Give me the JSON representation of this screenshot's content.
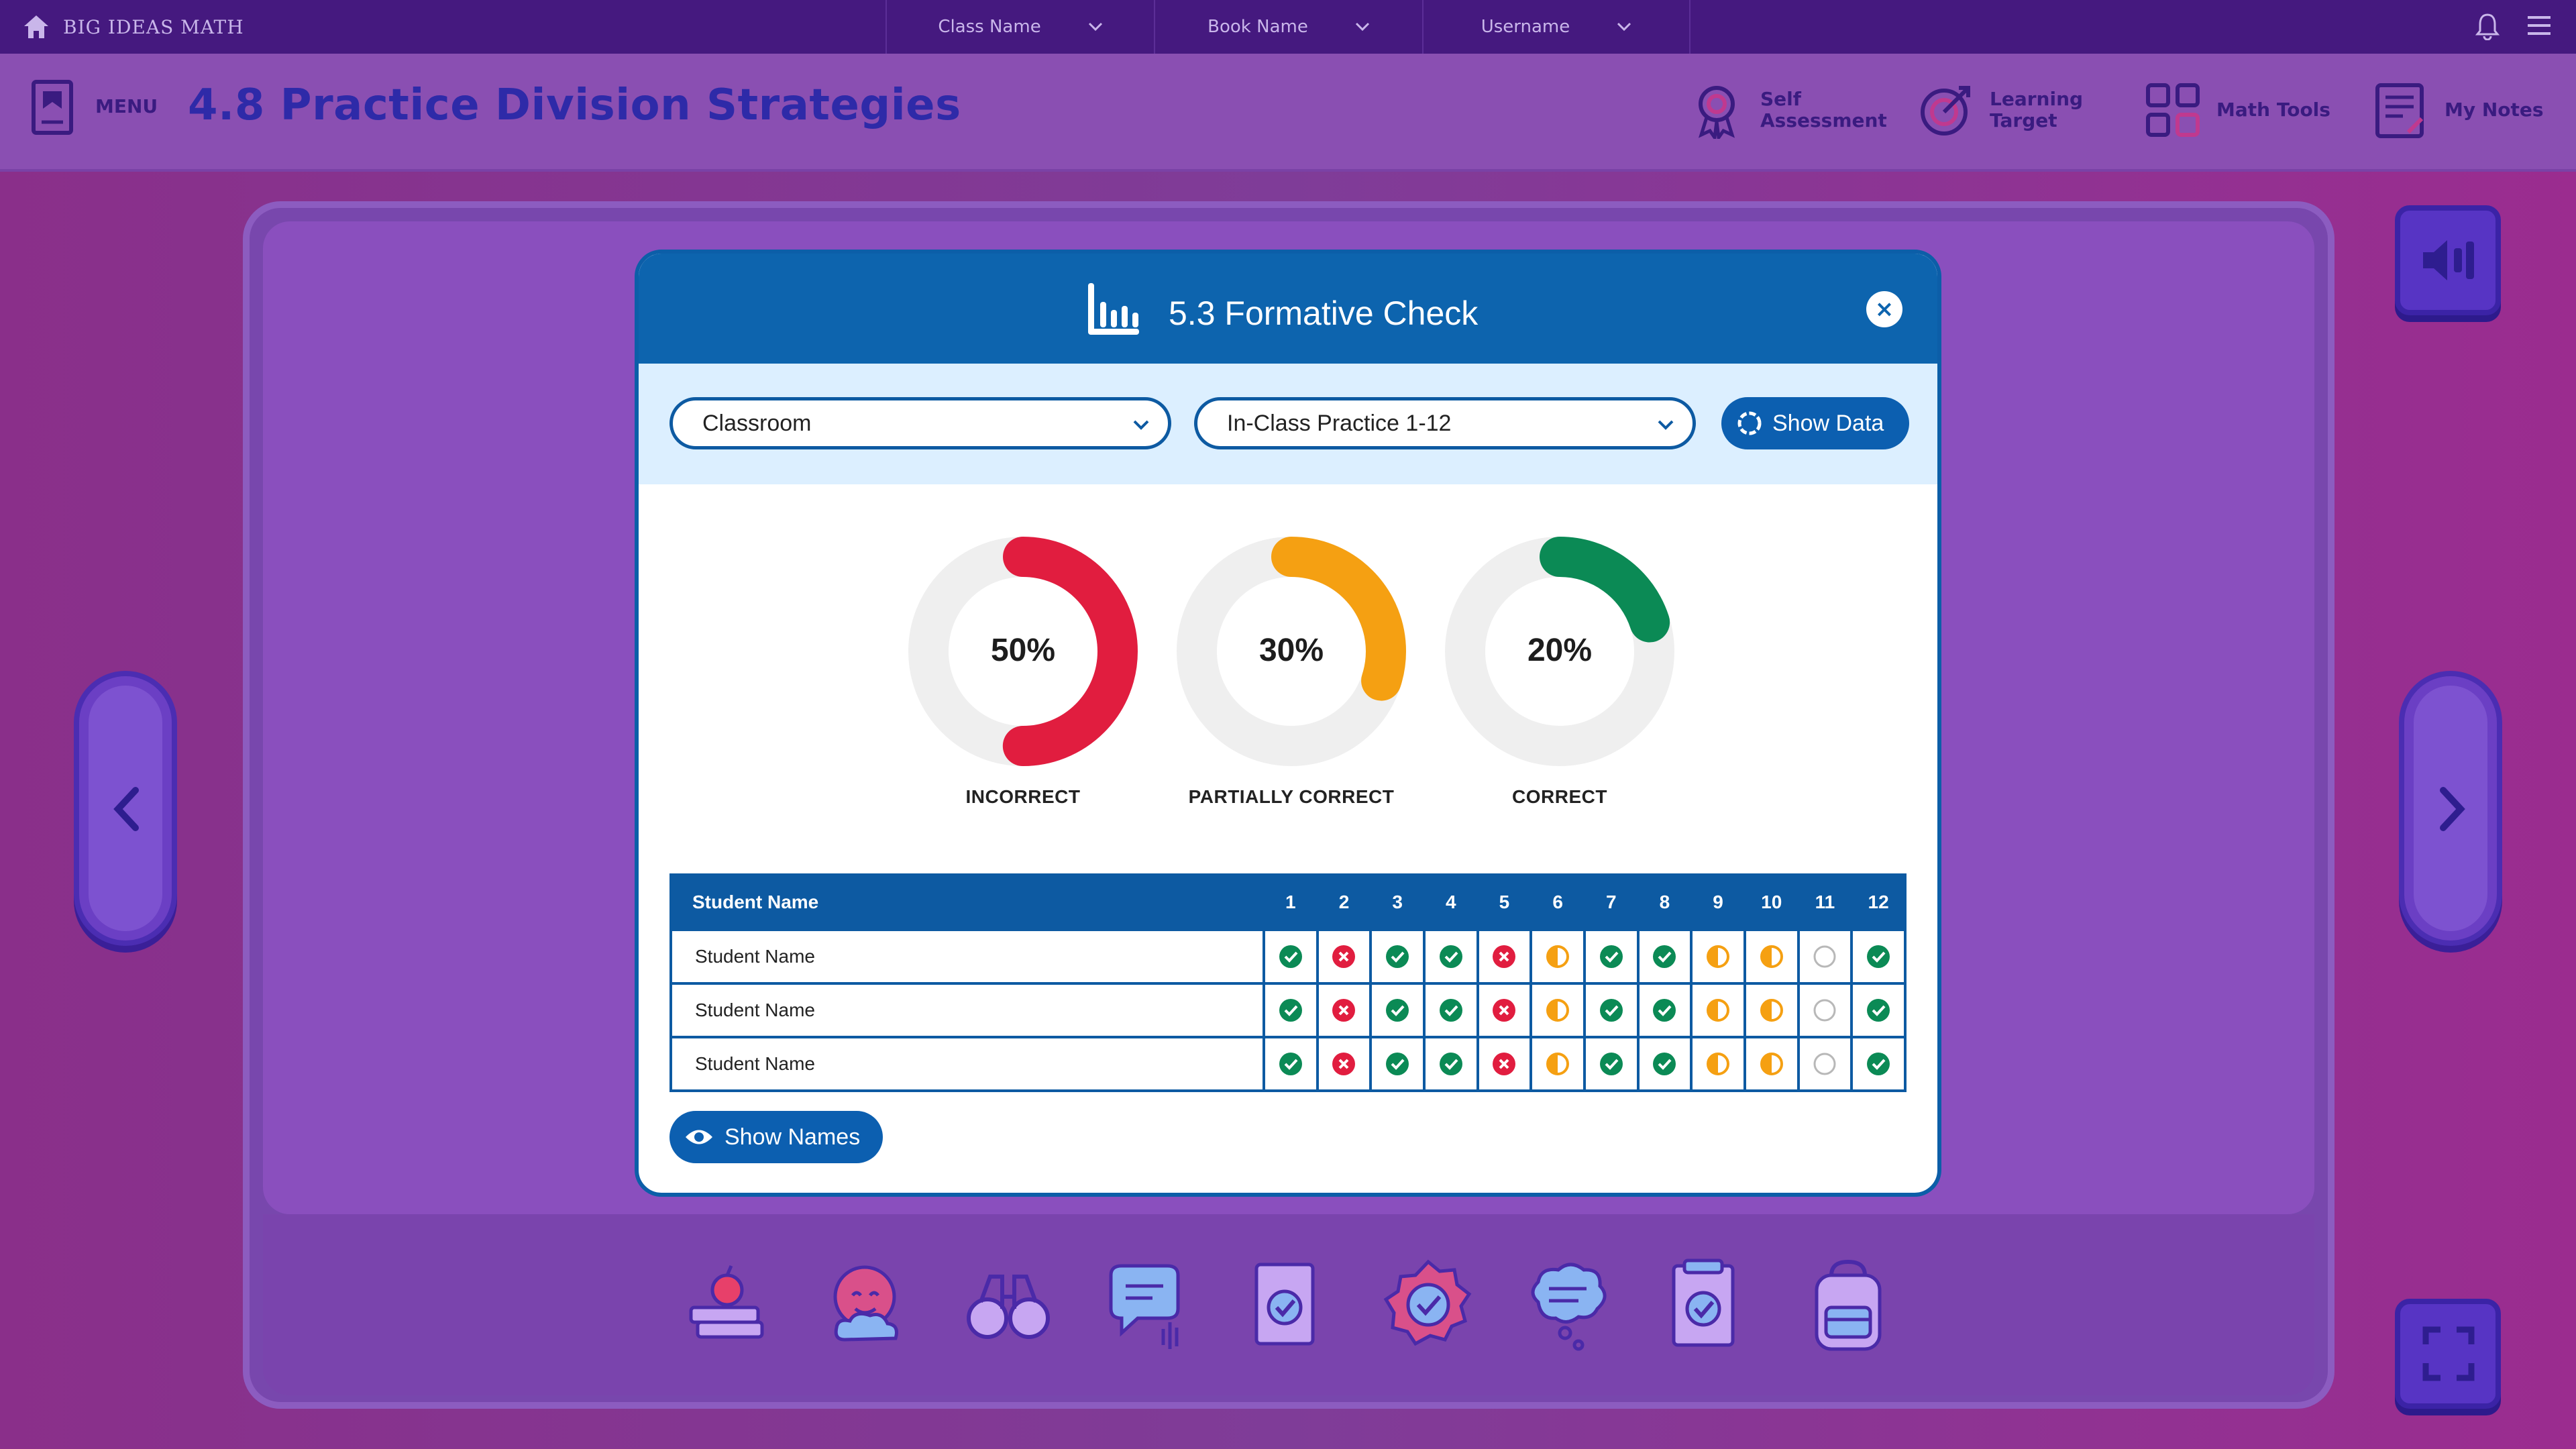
{
  "topbar": {
    "brand": "BIG IDEAS MATH",
    "class_select": "Class Name",
    "book_select": "Book Name",
    "user_select": "Username",
    "icons": [
      "home-icon",
      "bell-icon",
      "hamburger-menu-icon"
    ]
  },
  "header": {
    "menu_label": "MENU",
    "lesson_title": "4.8 Practice Division Strategies",
    "tools": [
      {
        "label": "Self Assessment",
        "icon": "award-ribbon-icon"
      },
      {
        "label": "Learning Target",
        "icon": "target-icon"
      },
      {
        "label": "Math Tools",
        "icon": "tools-grid-icon"
      },
      {
        "label": "My Notes",
        "icon": "notes-icon"
      }
    ]
  },
  "modal": {
    "title": "5.3 Formative Check",
    "filter1": "Classroom",
    "filter2": "In-Class Practice 1-12",
    "show_data": "Show Data",
    "show_names": "Show Names"
  },
  "chart_data": {
    "type": "pie",
    "subtype": "donut",
    "series": [
      {
        "name": "INCORRECT",
        "value": 50,
        "label": "50%",
        "color": "#e11d3f"
      },
      {
        "name": "PARTIALLY CORRECT",
        "value": 30,
        "label": "30%",
        "color": "#f5a012"
      },
      {
        "name": "CORRECT",
        "value": 20,
        "label": "20%",
        "color": "#0b8a55"
      }
    ],
    "track_color": "#efefef"
  },
  "results": {
    "header_name": "Student Name",
    "questions": [
      "1",
      "2",
      "3",
      "4",
      "5",
      "6",
      "7",
      "8",
      "9",
      "10",
      "11",
      "12"
    ],
    "rows": [
      {
        "name": "Student Name",
        "marks": [
          "correct",
          "incorrect",
          "correct",
          "correct",
          "incorrect",
          "partial",
          "correct",
          "correct",
          "partial",
          "partial",
          "empty",
          "correct"
        ]
      },
      {
        "name": "Student Name",
        "marks": [
          "correct",
          "incorrect",
          "correct",
          "correct",
          "incorrect",
          "partial",
          "correct",
          "correct",
          "partial",
          "partial",
          "empty",
          "correct"
        ]
      },
      {
        "name": "Student Name",
        "marks": [
          "correct",
          "incorrect",
          "correct",
          "correct",
          "incorrect",
          "partial",
          "correct",
          "correct",
          "partial",
          "partial",
          "empty",
          "correct"
        ]
      }
    ]
  },
  "tray": {
    "icons": [
      "books-apple-icon",
      "smiling-face-cloud-icon",
      "binoculars-icon",
      "chat-click-icon",
      "checklist-document-icon",
      "badge-check-icon",
      "thought-bubble-icon",
      "clipboard-check-icon",
      "backpack-icon"
    ]
  },
  "controls": {
    "audio": "speaker-icon",
    "prev": "chevron-left-icon",
    "next": "chevron-right-icon",
    "fullscreen": "fullscreen-icon"
  }
}
